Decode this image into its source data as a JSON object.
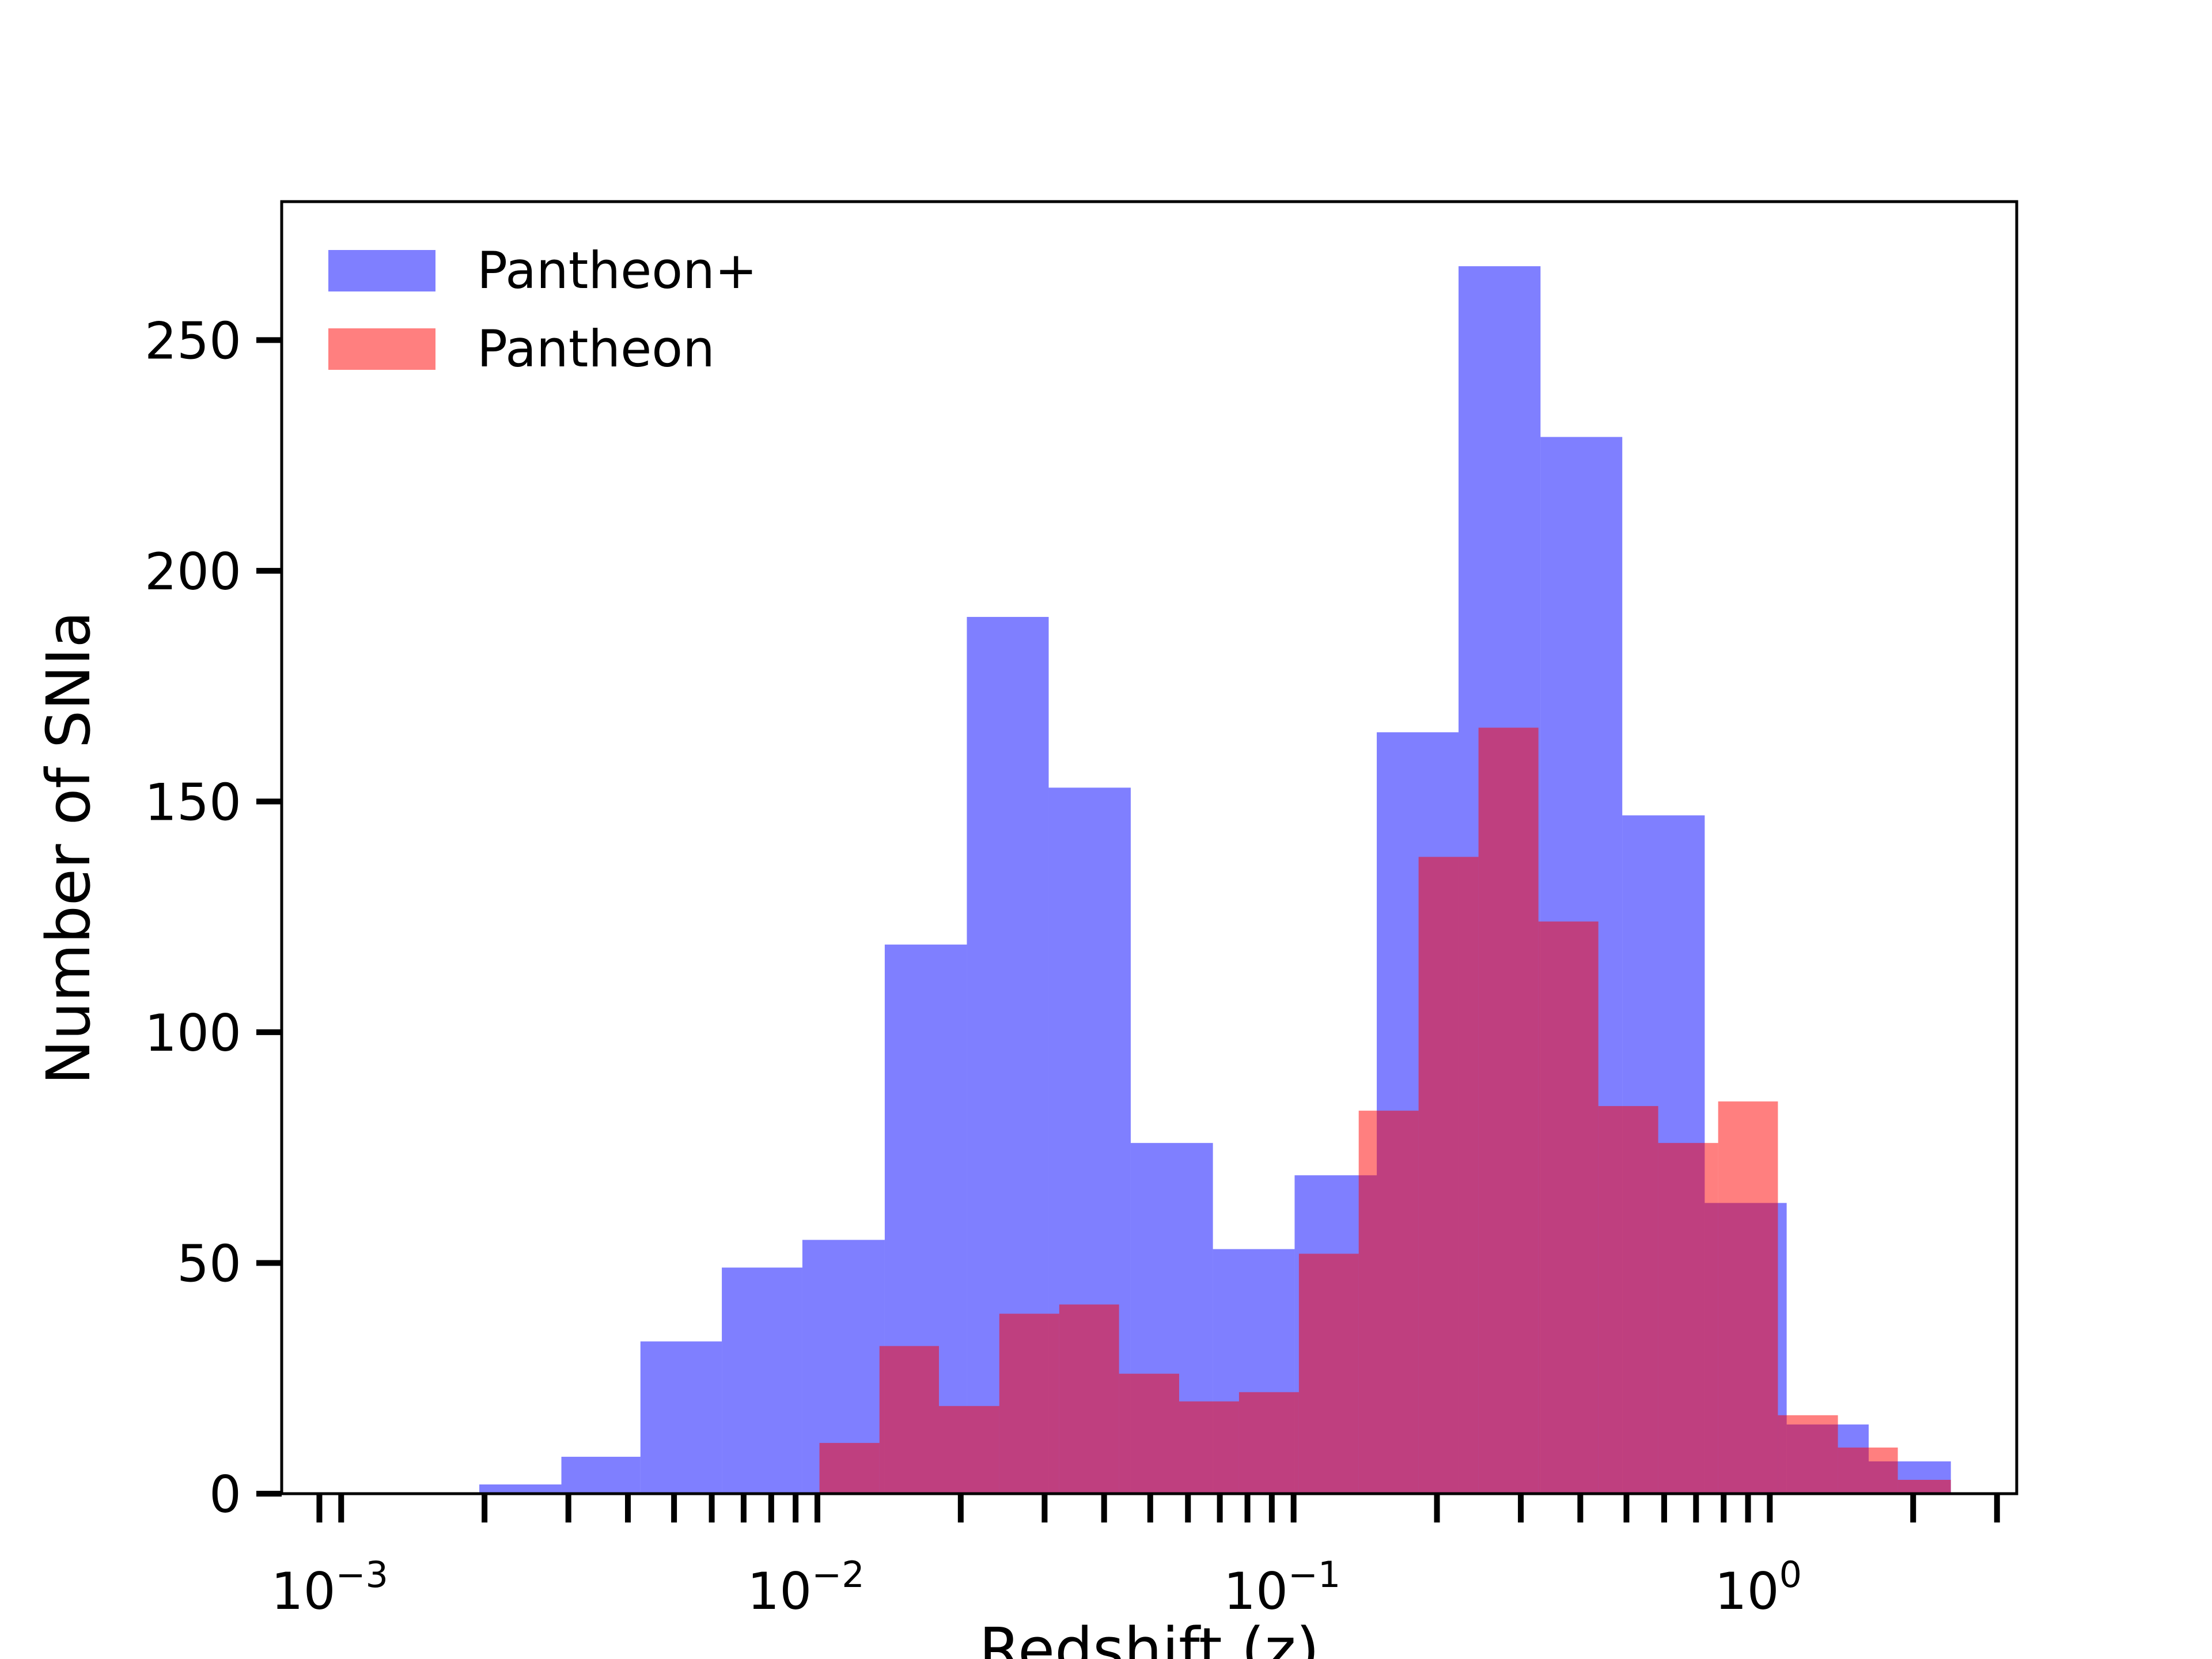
{
  "chart_data": {
    "type": "bar",
    "title": "",
    "xlabel": "Redshift (z)",
    "ylabel": "Number of SNIa",
    "xscale": "log",
    "xlim": [
      0.00075,
      3.3
    ],
    "ylim": [
      0,
      280
    ],
    "grid": false,
    "legend_position": "top-left",
    "y_ticks": [
      0,
      50,
      100,
      150,
      200,
      250
    ],
    "x_ticks": [
      {
        "value": 0.001,
        "base": "10",
        "exp": "−3"
      },
      {
        "value": 0.01,
        "base": "10",
        "exp": "−2"
      },
      {
        "value": 0.1,
        "base": "10",
        "exp": "−1"
      },
      {
        "value": 1,
        "base": "10",
        "exp": "0"
      }
    ],
    "x_minor_ticks": [
      0.0009,
      0.002,
      0.003,
      0.004,
      0.005,
      0.006,
      0.007,
      0.008,
      0.009,
      0.02,
      0.03,
      0.04,
      0.05,
      0.06,
      0.07,
      0.08,
      0.09,
      0.2,
      0.3,
      0.4,
      0.5,
      0.6,
      0.7,
      0.8,
      0.9,
      2,
      3
    ],
    "series": [
      {
        "name": "Pantheon+",
        "color": "#0000ff",
        "opacity": 0.5,
        "bin_edges": [
          0.00155,
          0.00195,
          0.0029,
          0.00425,
          0.0063,
          0.0093,
          0.01385,
          0.0206,
          0.0306,
          0.0455,
          0.0677,
          0.1005,
          0.1495,
          0.222,
          0.33,
          0.49,
          0.73,
          1.085,
          1.613,
          2.4
        ],
        "values": [
          0,
          2,
          8,
          33,
          49,
          55,
          119,
          190,
          153,
          76,
          53,
          69,
          165,
          266,
          229,
          147,
          63,
          15,
          7
        ]
      },
      {
        "name": "Pantheon",
        "color": "#ff0000",
        "opacity": 0.5,
        "bin_edges": [
          0.0101,
          0.0135,
          0.018,
          0.0241,
          0.0322,
          0.043,
          0.0575,
          0.0768,
          0.1026,
          0.137,
          0.183,
          0.2445,
          0.3267,
          0.4365,
          0.583,
          0.779,
          1.04,
          1.39,
          1.857,
          2.4
        ],
        "values": [
          11,
          32,
          19,
          39,
          41,
          26,
          20,
          22,
          52,
          83,
          138,
          166,
          124,
          84,
          76,
          85,
          17,
          10,
          3
        ]
      }
    ]
  }
}
